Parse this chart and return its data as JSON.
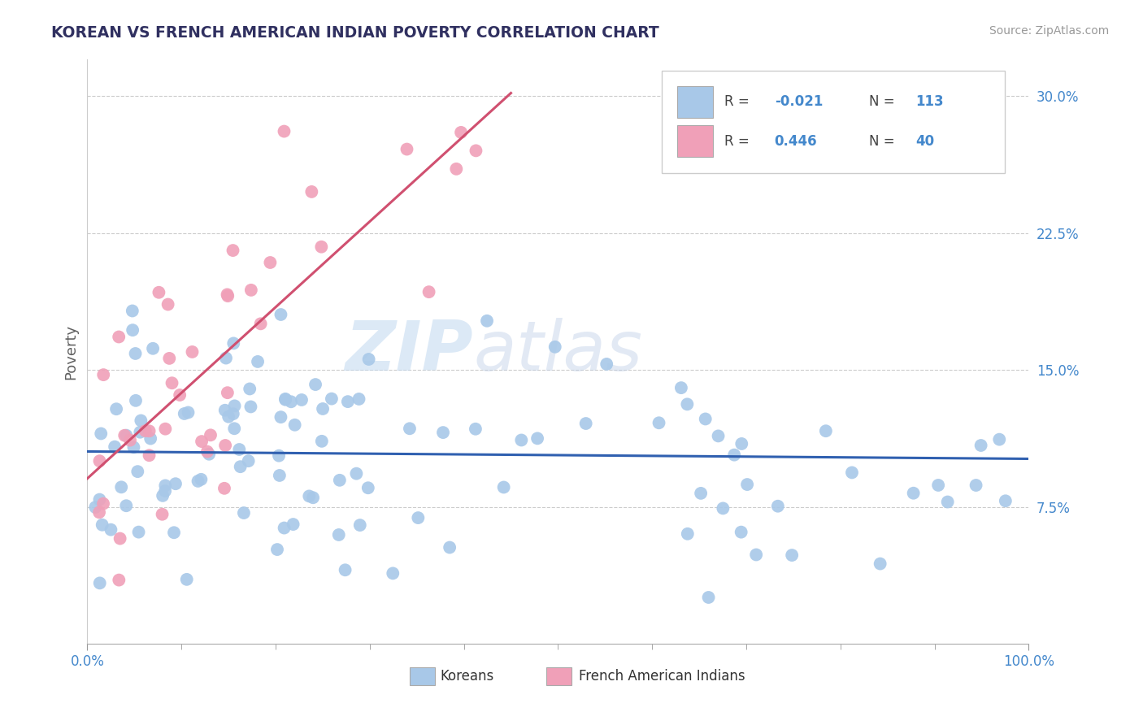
{
  "title": "KOREAN VS FRENCH AMERICAN INDIAN POVERTY CORRELATION CHART",
  "source": "Source: ZipAtlas.com",
  "ylabel": "Poverty",
  "xlim": [
    0,
    100
  ],
  "ylim": [
    0,
    32
  ],
  "yticks": [
    7.5,
    15.0,
    22.5,
    30.0
  ],
  "ytick_labels": [
    "7.5%",
    "15.0%",
    "22.5%",
    "30.0%"
  ],
  "korean_R": -0.021,
  "korean_N": 113,
  "fai_R": 0.446,
  "fai_N": 40,
  "korean_color": "#a8c8e8",
  "korean_line_color": "#3060b0",
  "fai_color": "#f0a0b8",
  "fai_line_color": "#d05070",
  "watermark_zip": "ZIP",
  "watermark_atlas": "atlas",
  "legend_label_1": "Koreans",
  "legend_label_2": "French American Indians",
  "grid_color": "#cccccc",
  "title_color": "#303060",
  "source_color": "#999999",
  "ylabel_color": "#606060",
  "ytick_color": "#4488cc",
  "korean_seed": 101,
  "fai_seed": 202
}
